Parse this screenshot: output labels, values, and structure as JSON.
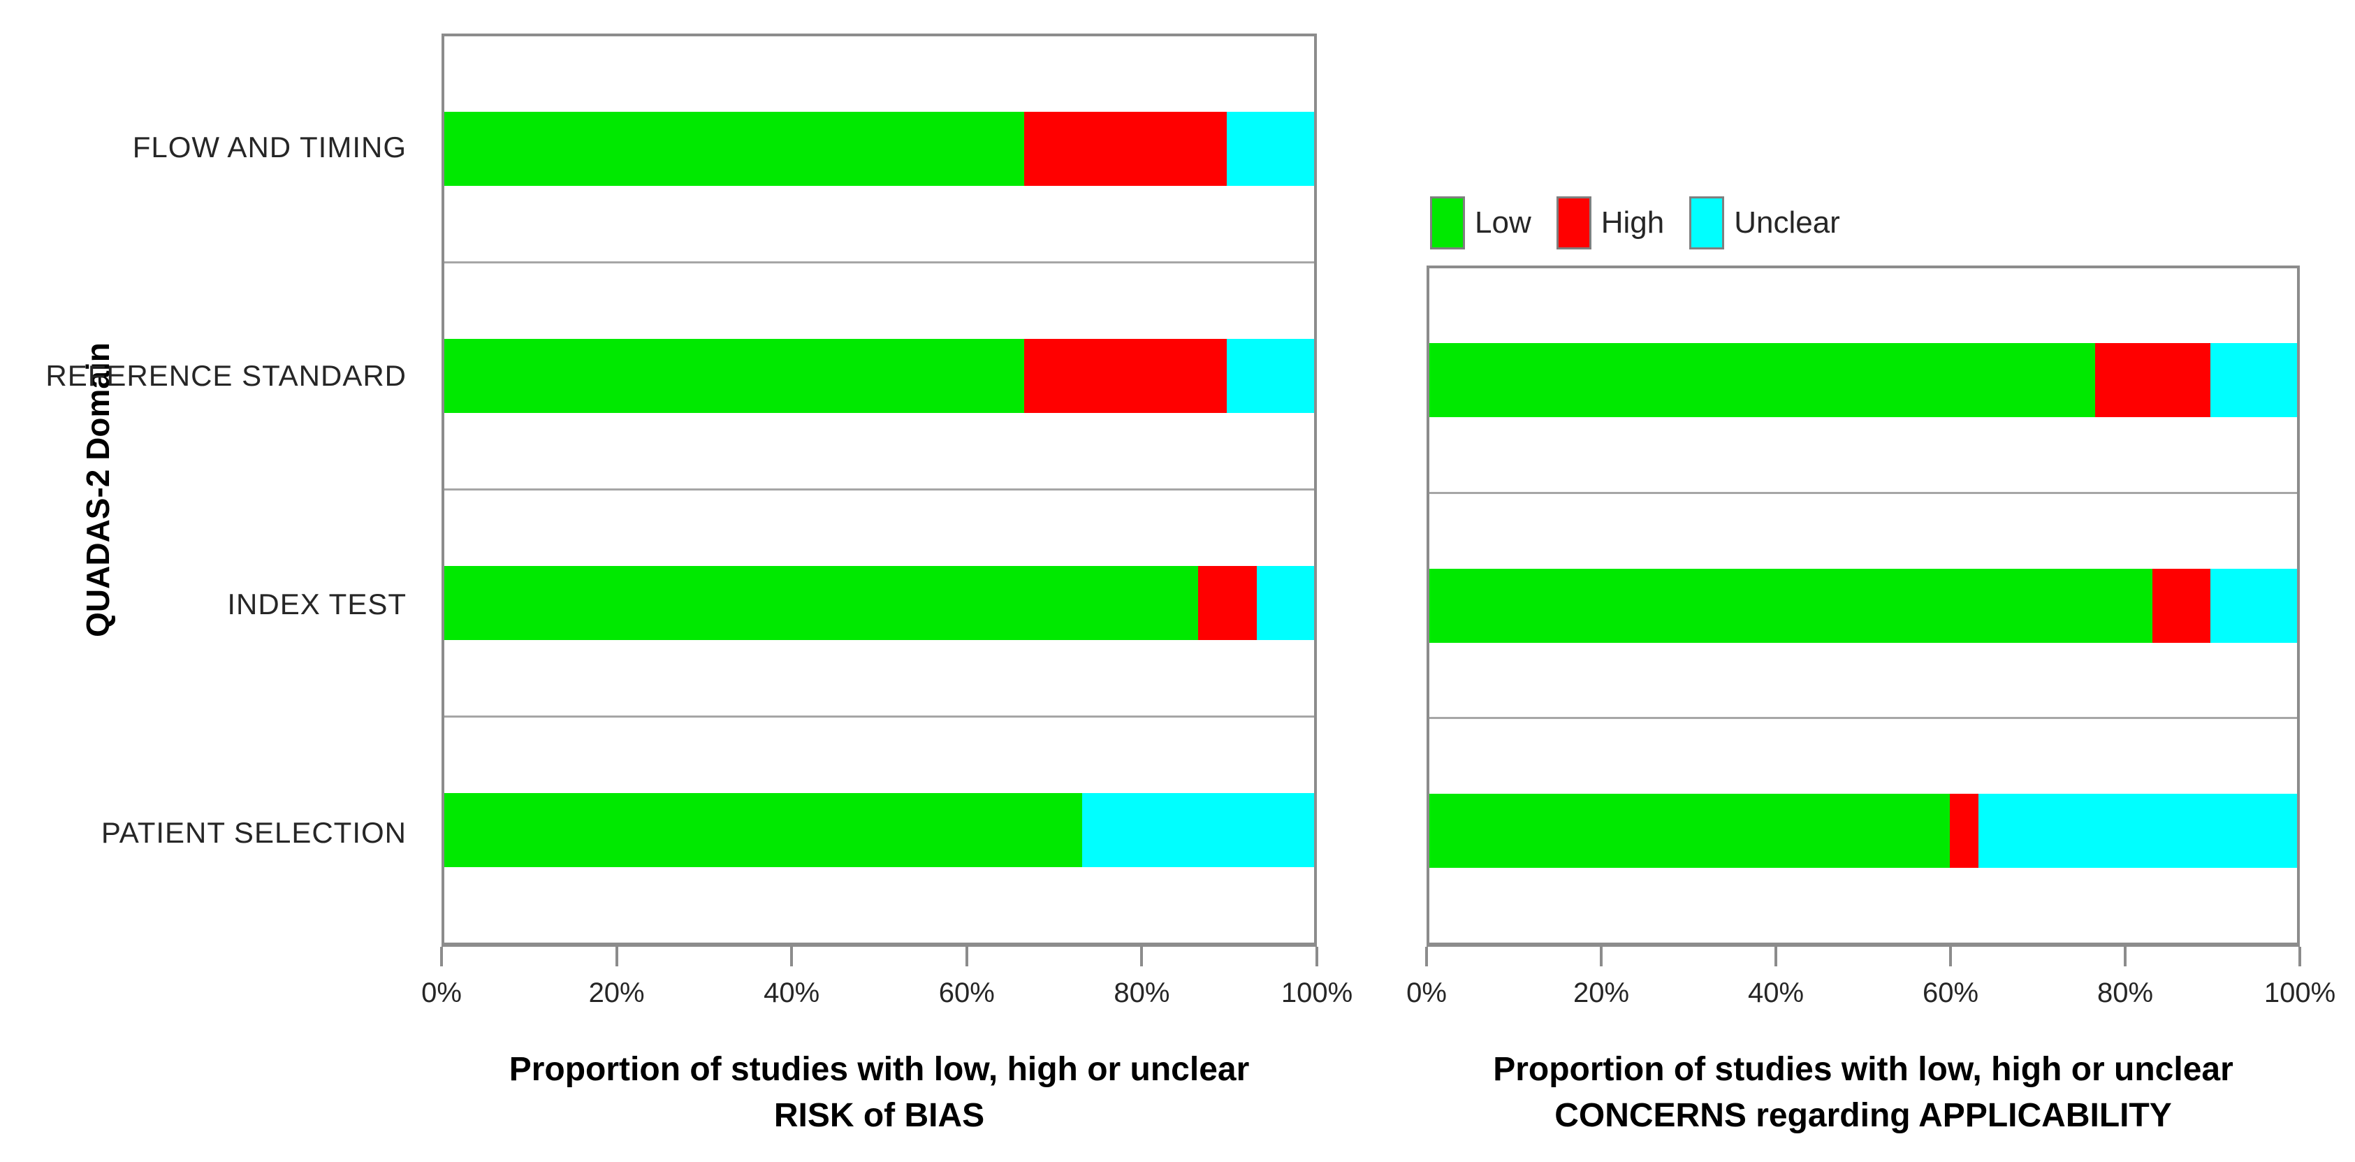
{
  "figure": {
    "y_axis_title": "QUADAS-2 Domain",
    "background": "#ffffff",
    "plot_border_color": "#8c8c8c",
    "divider_color": "#a6a6a6",
    "legend": {
      "position": "above-right-chart",
      "items": [
        {
          "label": "Low",
          "color": "#00e900"
        },
        {
          "label": "High",
          "color": "#ff0000"
        },
        {
          "label": "Unclear",
          "color": "#00ffff"
        }
      ]
    }
  },
  "chart_data": [
    {
      "type": "bar",
      "orientation": "horizontal",
      "stacked": true,
      "title_line1": "Proportion of studies with low, high or unclear",
      "title_line2": "RISK of BIAS",
      "categories": [
        "FLOW AND TIMING",
        "REFERENCE STANDARD",
        "INDEX TEST",
        "PATIENT SELECTION"
      ],
      "series": [
        {
          "name": "Low",
          "color": "#00e900",
          "values": [
            66.7,
            66.7,
            86.7,
            73.3
          ]
        },
        {
          "name": "High",
          "color": "#ff0000",
          "values": [
            23.3,
            23.3,
            6.7,
            0
          ]
        },
        {
          "name": "Unclear",
          "color": "#00ffff",
          "values": [
            10.0,
            10.0,
            6.6,
            26.7
          ]
        }
      ],
      "xlim": [
        0,
        100
      ],
      "x_ticks": [
        "0%",
        "20%",
        "40%",
        "60%",
        "80%",
        "100%"
      ],
      "grid": false,
      "legend_shown": false
    },
    {
      "type": "bar",
      "orientation": "horizontal",
      "stacked": true,
      "title_line1": "Proportion of studies with low, high or unclear",
      "title_line2": "CONCERNS regarding APPLICABILITY",
      "categories": [
        "REFERENCE STANDARD",
        "INDEX TEST",
        "PATIENT SELECTION"
      ],
      "series": [
        {
          "name": "Low",
          "color": "#00e900",
          "values": [
            76.7,
            83.3,
            60.0
          ]
        },
        {
          "name": "High",
          "color": "#ff0000",
          "values": [
            13.3,
            6.7,
            3.3
          ]
        },
        {
          "name": "Unclear",
          "color": "#00ffff",
          "values": [
            10.0,
            10.0,
            36.7
          ]
        }
      ],
      "xlim": [
        0,
        100
      ],
      "x_ticks": [
        "0%",
        "20%",
        "40%",
        "60%",
        "80%",
        "100%"
      ],
      "grid": false,
      "legend_shown": true
    }
  ]
}
